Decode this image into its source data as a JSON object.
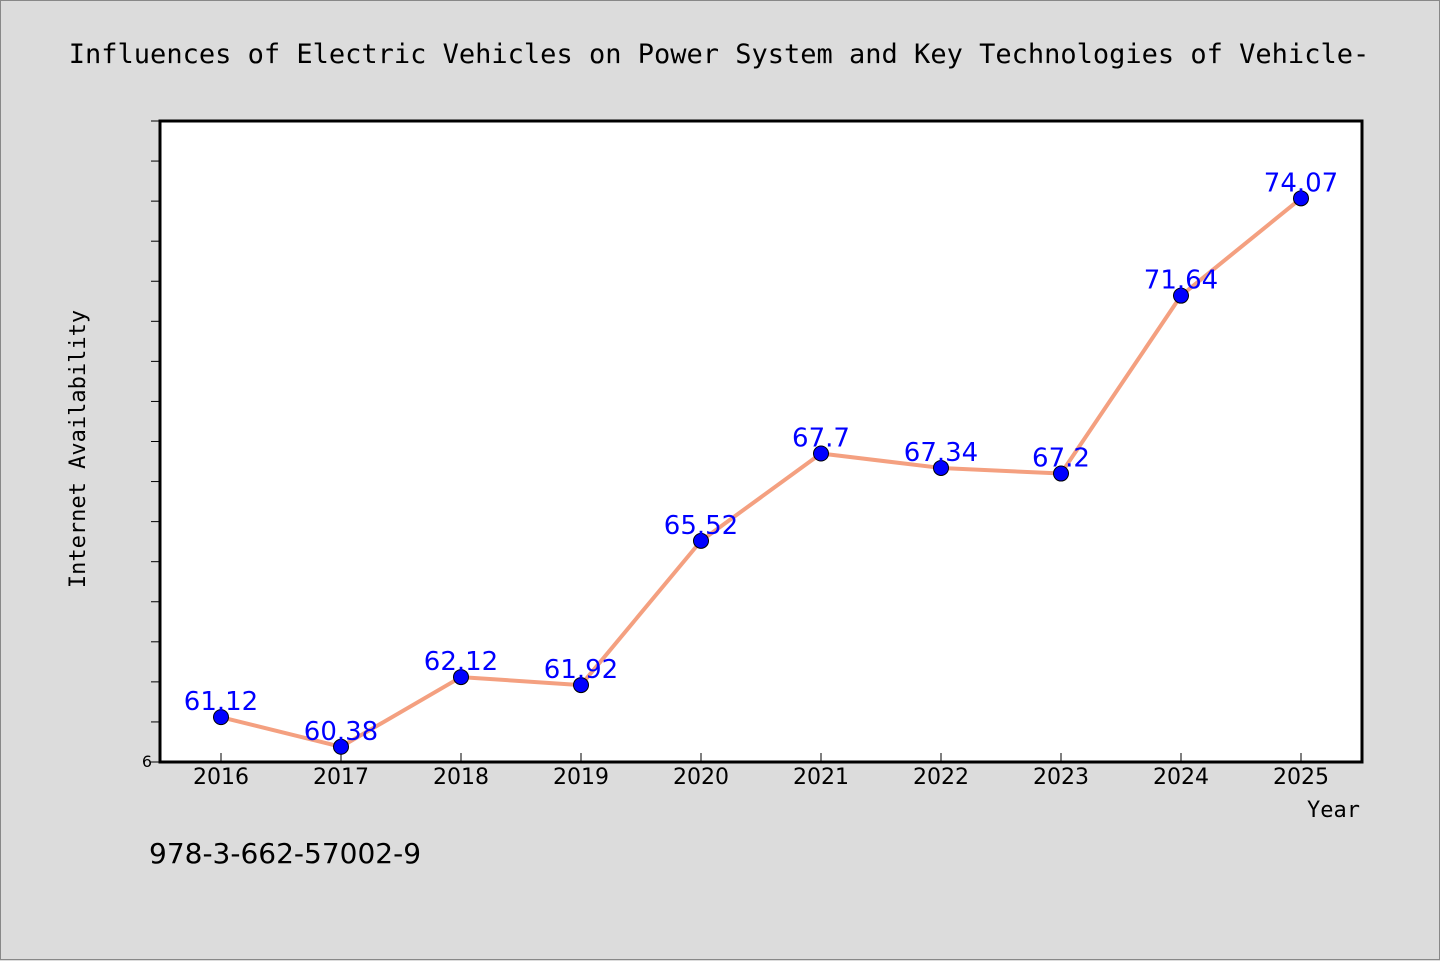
{
  "chart_data": {
    "type": "line",
    "title": "Influences of Electric Vehicles on Power System and Key Technologies of Vehicle-",
    "xlabel": "Year",
    "ylabel": "Internet Availability",
    "categories": [
      "2016",
      "2017",
      "2018",
      "2019",
      "2020",
      "2021",
      "2022",
      "2023",
      "2024",
      "2025"
    ],
    "series": [
      {
        "values": [
          61.12,
          60.38,
          62.12,
          61.92,
          65.52,
          67.7,
          67.34,
          67.2,
          71.64,
          74.07
        ],
        "labels": [
          "61.12",
          "60.38",
          "62.12",
          "61.92",
          "65.52",
          "67.7",
          "67.34",
          "67.2",
          "71.64",
          "74.07"
        ],
        "line_color": "#f4a080",
        "marker_color": "#0000ff"
      }
    ],
    "ylim": [
      60,
      76
    ],
    "y_tick_label": "6",
    "grid": false,
    "legend": "none"
  },
  "footer": {
    "isbn": "978-3-662-57002-9"
  },
  "colors": {
    "background": "#dcdcdc",
    "plot_background": "#ffffff"
  }
}
